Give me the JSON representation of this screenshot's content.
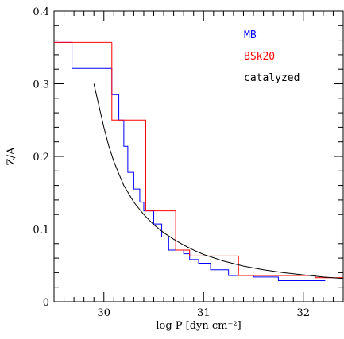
{
  "chart_data": {
    "type": "line",
    "xlabel": "log P [dyn cm⁻²]",
    "ylabel": "Z/A",
    "xlim": [
      29.5,
      32.4
    ],
    "ylim": [
      0,
      0.4
    ],
    "x_ticks": [
      "30",
      "31",
      "32"
    ],
    "y_ticks": [
      "0",
      "0.1",
      "0.2",
      "0.3",
      "0.4"
    ],
    "legend_placement": "top-right",
    "series": [
      {
        "name": "MB",
        "color": "#0000ff",
        "style": "step",
        "points": [
          [
            29.5,
            0.357
          ],
          [
            29.68,
            0.357
          ],
          [
            29.68,
            0.321
          ],
          [
            30.08,
            0.321
          ],
          [
            30.08,
            0.285
          ],
          [
            30.15,
            0.285
          ],
          [
            30.15,
            0.25
          ],
          [
            30.2,
            0.25
          ],
          [
            30.2,
            0.214
          ],
          [
            30.24,
            0.214
          ],
          [
            30.24,
            0.178
          ],
          [
            30.3,
            0.178
          ],
          [
            30.3,
            0.155
          ],
          [
            30.36,
            0.155
          ],
          [
            30.36,
            0.137
          ],
          [
            30.4,
            0.137
          ],
          [
            30.4,
            0.125
          ],
          [
            30.5,
            0.125
          ],
          [
            30.5,
            0.107
          ],
          [
            30.58,
            0.107
          ],
          [
            30.58,
            0.089
          ],
          [
            30.65,
            0.089
          ],
          [
            30.65,
            0.071
          ],
          [
            30.8,
            0.071
          ],
          [
            30.8,
            0.066
          ],
          [
            30.86,
            0.066
          ],
          [
            30.86,
            0.058
          ],
          [
            30.95,
            0.058
          ],
          [
            30.95,
            0.053
          ],
          [
            31.07,
            0.053
          ],
          [
            31.07,
            0.044
          ],
          [
            31.25,
            0.044
          ],
          [
            31.25,
            0.036
          ],
          [
            31.5,
            0.036
          ],
          [
            31.5,
            0.034
          ],
          [
            31.75,
            0.034
          ],
          [
            31.75,
            0.029
          ],
          [
            32.22,
            0.029
          ]
        ]
      },
      {
        "name": "BSk20",
        "color": "#ff0000",
        "style": "step",
        "points": [
          [
            29.5,
            0.357
          ],
          [
            30.08,
            0.357
          ],
          [
            30.08,
            0.25
          ],
          [
            30.42,
            0.25
          ],
          [
            30.42,
            0.125
          ],
          [
            30.72,
            0.125
          ],
          [
            30.72,
            0.071
          ],
          [
            30.86,
            0.071
          ],
          [
            30.86,
            0.063
          ],
          [
            31.35,
            0.063
          ],
          [
            31.35,
            0.036
          ],
          [
            32.12,
            0.036
          ],
          [
            32.12,
            0.033
          ],
          [
            32.4,
            0.033
          ]
        ]
      },
      {
        "name": "catalyzed",
        "color": "#000000",
        "style": "curve",
        "points": [
          [
            29.9,
            0.3
          ],
          [
            29.95,
            0.27
          ],
          [
            30.0,
            0.24
          ],
          [
            30.05,
            0.214
          ],
          [
            30.1,
            0.193
          ],
          [
            30.15,
            0.176
          ],
          [
            30.2,
            0.16
          ],
          [
            30.3,
            0.137
          ],
          [
            30.4,
            0.12
          ],
          [
            30.5,
            0.106
          ],
          [
            30.6,
            0.095
          ],
          [
            30.7,
            0.086
          ],
          [
            30.8,
            0.078
          ],
          [
            30.9,
            0.071
          ],
          [
            31.0,
            0.065
          ],
          [
            31.2,
            0.056
          ],
          [
            31.4,
            0.049
          ],
          [
            31.6,
            0.044
          ],
          [
            31.8,
            0.04
          ],
          [
            32.0,
            0.037
          ],
          [
            32.2,
            0.034
          ],
          [
            32.4,
            0.032
          ]
        ]
      }
    ]
  }
}
